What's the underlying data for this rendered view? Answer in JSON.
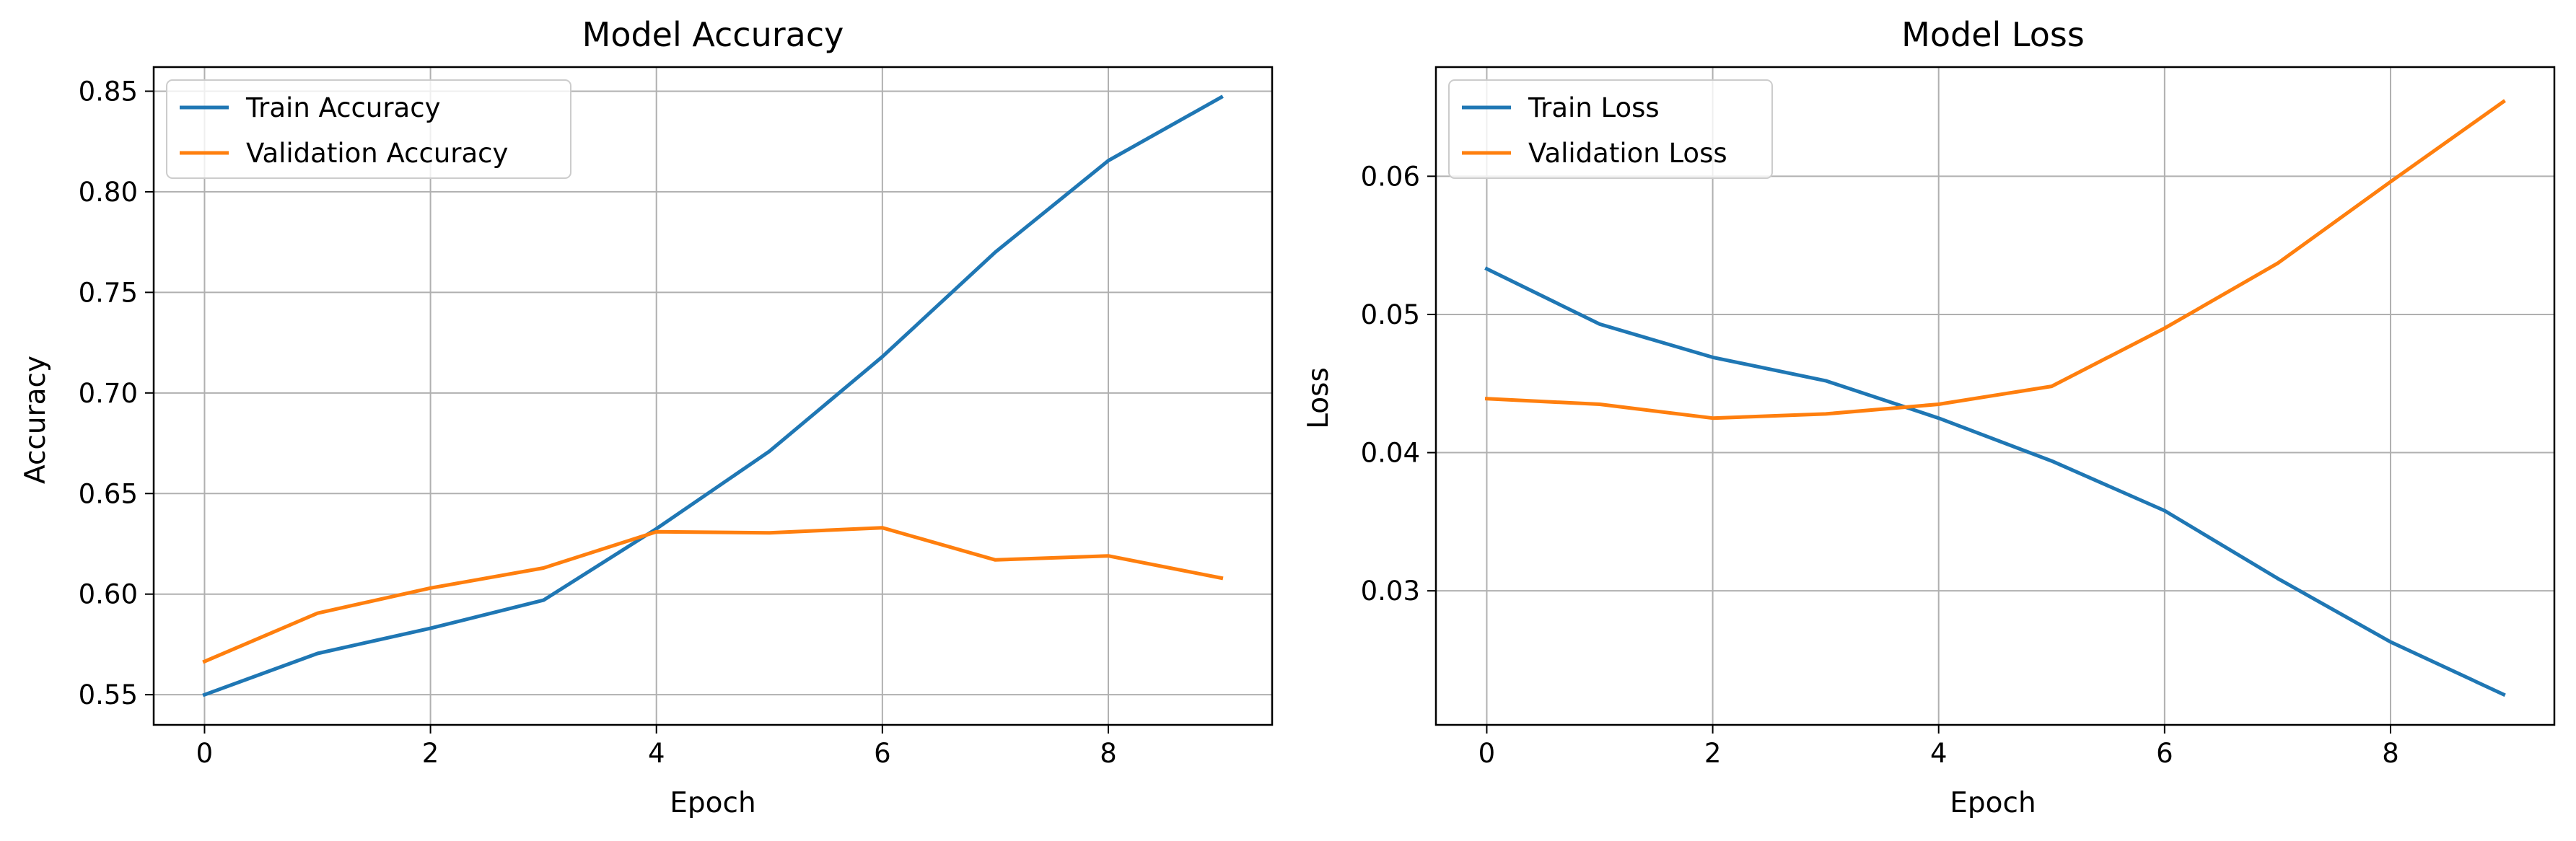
{
  "chart_data": [
    {
      "type": "line",
      "title": "Model Accuracy",
      "xlabel": "Epoch",
      "ylabel": "Accuracy",
      "x": [
        0,
        1,
        2,
        3,
        4,
        5,
        6,
        7,
        8,
        9
      ],
      "xlim": [
        -0.45,
        9.45
      ],
      "ylim": [
        0.535,
        0.862
      ],
      "xticks": [
        0,
        2,
        4,
        6,
        8
      ],
      "xtick_labels": [
        "0",
        "2",
        "4",
        "6",
        "8"
      ],
      "yticks": [
        0.55,
        0.6,
        0.65,
        0.7,
        0.75,
        0.8,
        0.85
      ],
      "ytick_labels": [
        "0.55",
        "0.60",
        "0.65",
        "0.70",
        "0.75",
        "0.80",
        "0.85"
      ],
      "grid": true,
      "legend": "upper-left",
      "series": [
        {
          "name": "Train Accuracy",
          "color": "#1f77b4",
          "values": [
            0.55,
            0.5705,
            0.583,
            0.597,
            0.6325,
            0.671,
            0.718,
            0.77,
            0.8155,
            0.847
          ]
        },
        {
          "name": "Validation Accuracy",
          "color": "#ff7f0e",
          "values": [
            0.5665,
            0.5905,
            0.603,
            0.613,
            0.631,
            0.6305,
            0.633,
            0.617,
            0.619,
            0.608
          ]
        }
      ]
    },
    {
      "type": "line",
      "title": "Model Loss",
      "xlabel": "Epoch",
      "ylabel": "Loss",
      "x": [
        0,
        1,
        2,
        3,
        4,
        5,
        6,
        7,
        8,
        9
      ],
      "xlim": [
        -0.45,
        9.45
      ],
      "ylim": [
        0.0203,
        0.0679
      ],
      "xticks": [
        0,
        2,
        4,
        6,
        8
      ],
      "xtick_labels": [
        "0",
        "2",
        "4",
        "6",
        "8"
      ],
      "yticks": [
        0.03,
        0.04,
        0.05,
        0.06
      ],
      "ytick_labels": [
        "0.03",
        "0.04",
        "0.05",
        "0.06"
      ],
      "grid": true,
      "legend": "upper-left",
      "series": [
        {
          "name": "Train Loss",
          "color": "#1f77b4",
          "values": [
            0.0533,
            0.0493,
            0.0469,
            0.0452,
            0.0425,
            0.0394,
            0.0358,
            0.0309,
            0.0263,
            0.0225
          ]
        },
        {
          "name": "Validation Loss",
          "color": "#ff7f0e",
          "values": [
            0.0439,
            0.0435,
            0.0425,
            0.0428,
            0.0435,
            0.0448,
            0.049,
            0.0537,
            0.0596,
            0.0654
          ]
        }
      ]
    }
  ]
}
